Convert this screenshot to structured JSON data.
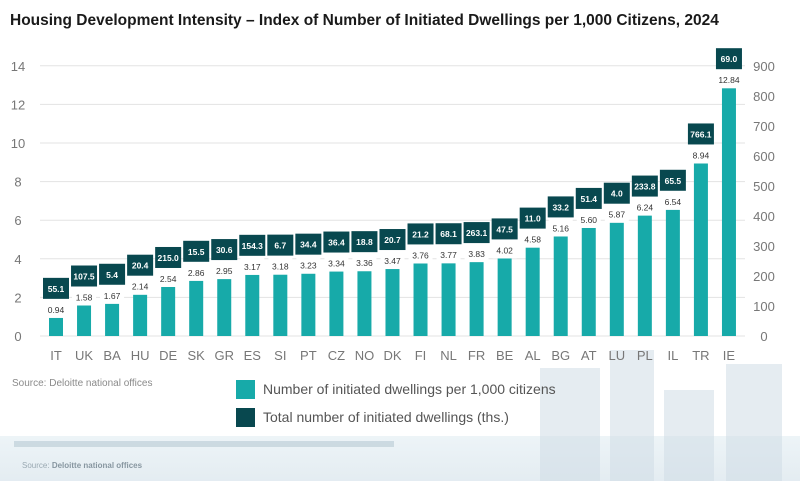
{
  "chart_data": {
    "type": "bar",
    "title": "Housing Development Intensity – Index of Number of Initiated Dwellings per 1,000 Citizens, 2024",
    "categories": [
      "IT",
      "UK",
      "BA",
      "HU",
      "DE",
      "SK",
      "GR",
      "ES",
      "SI",
      "PT",
      "CZ",
      "NO",
      "DK",
      "FI",
      "NL",
      "FR",
      "BE",
      "AL",
      "BG",
      "AT",
      "LU",
      "PL",
      "IL",
      "TR",
      "IE"
    ],
    "series": [
      {
        "name": "Number of initiated dwellings per 1,000 citizens",
        "axis": "left",
        "values": [
          0.94,
          1.58,
          1.67,
          2.14,
          2.54,
          2.86,
          2.95,
          3.17,
          3.18,
          3.23,
          3.34,
          3.36,
          3.47,
          3.76,
          3.77,
          3.83,
          4.02,
          4.58,
          5.16,
          5.6,
          5.87,
          6.24,
          6.54,
          8.94,
          12.84
        ],
        "labels": [
          "0.94",
          "1.58",
          "1.67",
          "2.14",
          "2.54",
          "2.86",
          "2.95",
          "3.17",
          "3.18",
          "3.23",
          "3.34",
          "3.36",
          "3.47",
          "3.76",
          "3.77",
          "3.83",
          "4.02",
          "4.58",
          "5.16",
          "5.60",
          "5.87",
          "6.24",
          "6.54",
          "8.94",
          "12.84"
        ]
      },
      {
        "name": "Total number of initiated dwellings (ths.)",
        "axis": "right",
        "values": [
          55.1,
          107.5,
          5.4,
          20.4,
          215.0,
          15.5,
          30.6,
          154.3,
          6.7,
          34.4,
          36.4,
          18.8,
          20.7,
          21.2,
          68.1,
          263.1,
          47.5,
          11.0,
          33.2,
          51.4,
          4.0,
          233.8,
          65.5,
          766.1,
          69.0
        ],
        "labels": [
          "55.1",
          "107.5",
          "5.4",
          "20.4",
          "215.0",
          "15.5",
          "30.6",
          "154.3",
          "6.7",
          "34.4",
          "36.4",
          "18.8",
          "20.7",
          "21.2",
          "68.1",
          "263.1",
          "47.5",
          "11.0",
          "33.2",
          "51.4",
          "4.0",
          "233.8",
          "65.5",
          "766.1",
          "69.0"
        ]
      }
    ],
    "y_left": {
      "min": 0,
      "max": 14,
      "ticks": [
        "0",
        "2",
        "4",
        "6",
        "8",
        "10",
        "12",
        "14"
      ]
    },
    "y_right": {
      "min": 0,
      "max": 900,
      "ticks": [
        "0",
        "100",
        "200",
        "300",
        "400",
        "500",
        "600",
        "700",
        "800",
        "900"
      ]
    },
    "grid": true,
    "legend": "bottom-center"
  },
  "source": "Source: Deloitte national offices",
  "background_source": {
    "prefix": "Source:",
    "name": "Deloitte national offices"
  },
  "colors": {
    "bar": "#17aaa9",
    "badge": "#08484f",
    "grid": "#e3e3e3",
    "axis_text": "#777777"
  }
}
